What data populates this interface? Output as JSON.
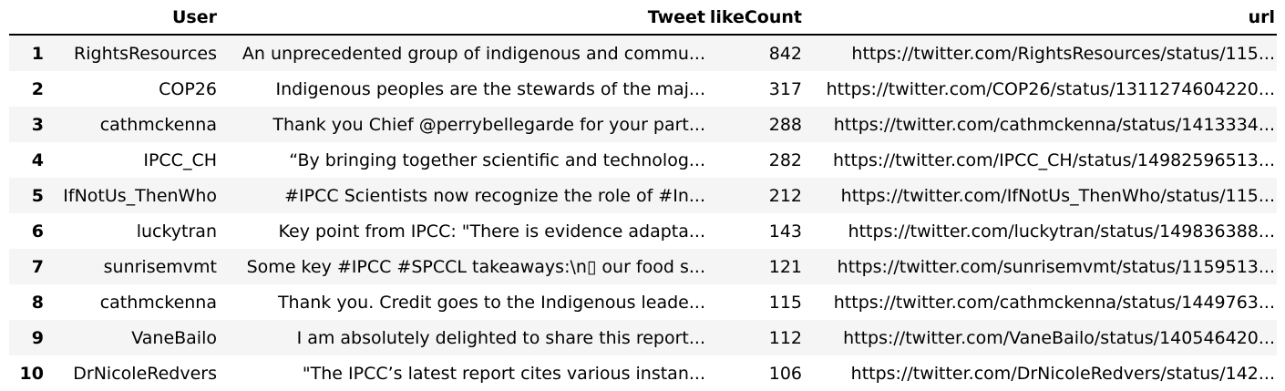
{
  "table": {
    "columns": [
      "",
      "User",
      "Tweet",
      "likeCount",
      "url"
    ],
    "rows": [
      {
        "index": "1",
        "user": "RightsResources",
        "tweet": "An unprecedented group of indigenous and commu...",
        "likeCount": "842",
        "url": "https://twitter.com/RightsResources/status/115..."
      },
      {
        "index": "2",
        "user": "COP26",
        "tweet": "Indigenous peoples are the stewards of the maj...",
        "likeCount": "317",
        "url": "https://twitter.com/COP26/status/1311274604220..."
      },
      {
        "index": "3",
        "user": "cathmckenna",
        "tweet": "Thank you Chief @perrybellegarde for your part...",
        "likeCount": "288",
        "url": "https://twitter.com/cathmckenna/status/1413334..."
      },
      {
        "index": "4",
        "user": "IPCC_CH",
        "tweet": "“By bringing together scientific and technolog...",
        "likeCount": "282",
        "url": "https://twitter.com/IPCC_CH/status/14982596513..."
      },
      {
        "index": "5",
        "user": "IfNotUs_ThenWho",
        "tweet": "#IPCC Scientists now recognize the role of #In...",
        "likeCount": "212",
        "url": "https://twitter.com/IfNotUs_ThenWho/status/115..."
      },
      {
        "index": "6",
        "user": "luckytran",
        "tweet": "Key point from IPCC: \"There is evidence adapta...",
        "likeCount": "143",
        "url": "https://twitter.com/luckytran/status/149836388..."
      },
      {
        "index": "7",
        "user": "sunrisemvmt",
        "tweet": "Some key #IPCC #SPCCL takeaways:\\n▯ our food s...",
        "likeCount": "121",
        "url": "https://twitter.com/sunrisemvmt/status/1159513..."
      },
      {
        "index": "8",
        "user": "cathmckenna",
        "tweet": "Thank you. Credit goes to the Indigenous leade...",
        "likeCount": "115",
        "url": "https://twitter.com/cathmckenna/status/1449763..."
      },
      {
        "index": "9",
        "user": "VaneBailo",
        "tweet": "I am absolutely delighted to share this report...",
        "likeCount": "112",
        "url": "https://twitter.com/VaneBailo/status/140546420..."
      },
      {
        "index": "10",
        "user": "DrNicoleRedvers",
        "tweet": "\"The IPCC’s latest report cites various instan...",
        "likeCount": "106",
        "url": "https://twitter.com/DrNicoleRedvers/status/142..."
      }
    ]
  }
}
